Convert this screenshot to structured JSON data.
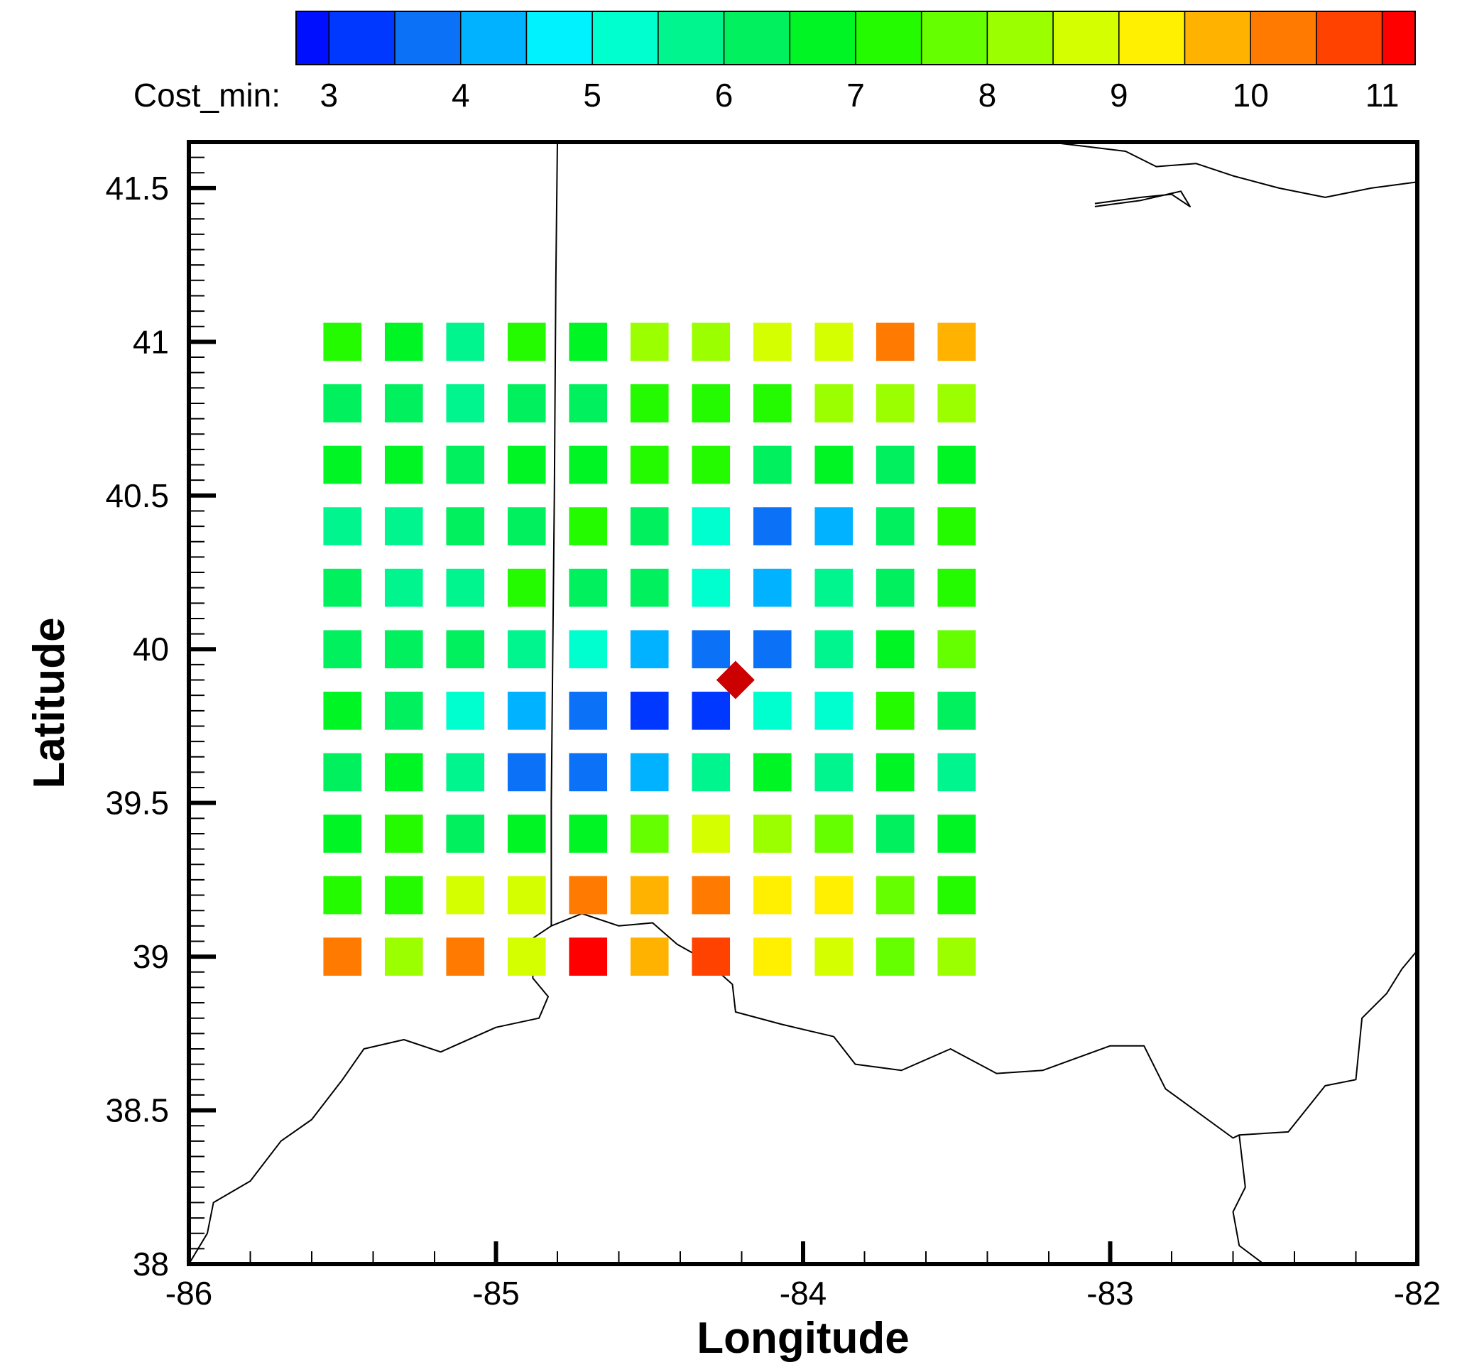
{
  "colorbar": {
    "label": "Cost_min:",
    "min": 2.75,
    "max": 11.25,
    "levels": [
      2.75,
      3.0,
      3.5,
      4.0,
      4.5,
      5.0,
      5.5,
      6.0,
      6.5,
      7.0,
      7.5,
      8.0,
      8.5,
      9.0,
      9.5,
      10.0,
      10.5,
      11.0,
      11.25
    ],
    "colors": [
      "#0010ff",
      "#0038ff",
      "#0b72f7",
      "#00b2ff",
      "#00f2ff",
      "#00ffce",
      "#00f58f",
      "#00f05e",
      "#00f525",
      "#24fa00",
      "#66ff00",
      "#9cff00",
      "#d4ff00",
      "#ffef00",
      "#ffb300",
      "#ff7a00",
      "#ff4200",
      "#ff0000"
    ],
    "tick_values": [
      3,
      4,
      5,
      6,
      7,
      8,
      9,
      10,
      11
    ],
    "tick_labels": [
      "3",
      "4",
      "5",
      "6",
      "7",
      "8",
      "9",
      "10",
      "11"
    ]
  },
  "chart_data": {
    "type": "heatmap",
    "xlabel": "Longitude",
    "ylabel": "Latitude",
    "xlim": [
      -86,
      -82
    ],
    "ylim": [
      38,
      41.65
    ],
    "xticks": [
      -86,
      -85,
      -84,
      -83,
      -82
    ],
    "xtick_labels": [
      "-86",
      "-85",
      "-84",
      "-83",
      "-82"
    ],
    "yticks": [
      38,
      38.5,
      39,
      39.5,
      40,
      40.5,
      41,
      41.5
    ],
    "ytick_labels": [
      "38",
      "38.5",
      "39",
      "39.5",
      "40",
      "40.5",
      "41",
      "41.5"
    ],
    "x": [
      -85.5,
      -85.3,
      -85.1,
      -84.9,
      -84.7,
      -84.5,
      -84.3,
      -84.1,
      -83.9,
      -83.7,
      -83.5
    ],
    "y": [
      41.0,
      40.8,
      40.6,
      40.4,
      40.2,
      40.0,
      39.8,
      39.6,
      39.4,
      39.2,
      39.0
    ],
    "z": [
      [
        7.0,
        6.5,
        5.5,
        7.0,
        6.5,
        8.0,
        8.0,
        8.5,
        8.5,
        10.0,
        9.5
      ],
      [
        6.0,
        6.0,
        5.5,
        6.0,
        6.0,
        7.0,
        7.0,
        7.0,
        8.0,
        8.0,
        8.0
      ],
      [
        6.5,
        6.5,
        6.0,
        6.5,
        6.5,
        7.0,
        7.0,
        6.0,
        6.5,
        6.0,
        6.5
      ],
      [
        5.5,
        5.5,
        6.0,
        6.0,
        7.0,
        6.0,
        5.0,
        3.5,
        4.0,
        6.0,
        7.0
      ],
      [
        6.0,
        5.5,
        5.5,
        7.0,
        6.0,
        6.0,
        5.0,
        4.0,
        5.5,
        6.0,
        7.0
      ],
      [
        6.0,
        6.0,
        6.0,
        5.5,
        5.0,
        4.0,
        3.5,
        3.5,
        5.5,
        6.5,
        7.5
      ],
      [
        6.5,
        6.0,
        5.0,
        4.0,
        3.5,
        3.0,
        3.0,
        5.0,
        5.0,
        7.0,
        6.0
      ],
      [
        6.0,
        6.5,
        5.5,
        3.5,
        3.5,
        4.0,
        5.5,
        6.5,
        5.5,
        6.5,
        5.5
      ],
      [
        6.5,
        7.0,
        6.0,
        6.5,
        6.5,
        7.5,
        8.5,
        8.0,
        7.5,
        6.0,
        6.5
      ],
      [
        7.0,
        7.0,
        8.5,
        8.5,
        10.0,
        9.5,
        10.0,
        9.0,
        9.0,
        7.5,
        7.0
      ],
      [
        10.0,
        8.0,
        10.0,
        8.5,
        11.0,
        9.5,
        10.5,
        9.0,
        8.5,
        7.5,
        8.0
      ]
    ],
    "marker": {
      "lon": -84.22,
      "lat": 39.9,
      "shape": "diamond",
      "color": "#cc0000"
    },
    "grid": false
  },
  "map": {
    "boundary_color": "#000000",
    "state_line": [
      [
        -84.8,
        41.65
      ],
      [
        -84.805,
        41.2
      ],
      [
        -84.81,
        40.5
      ],
      [
        -84.815,
        40.0
      ],
      [
        -84.82,
        39.5
      ],
      [
        -84.82,
        39.1
      ]
    ],
    "river": [
      [
        -86,
        38.0
      ],
      [
        -85.94,
        38.1
      ],
      [
        -85.92,
        38.2
      ],
      [
        -85.8,
        38.27
      ],
      [
        -85.7,
        38.4
      ],
      [
        -85.6,
        38.47
      ],
      [
        -85.5,
        38.6
      ],
      [
        -85.43,
        38.7
      ],
      [
        -85.3,
        38.73
      ],
      [
        -85.18,
        38.69
      ],
      [
        -85.0,
        38.77
      ],
      [
        -84.86,
        38.8
      ],
      [
        -84.83,
        38.87
      ],
      [
        -84.88,
        38.93
      ],
      [
        -84.88,
        39.06
      ],
      [
        -84.82,
        39.1
      ],
      [
        -84.72,
        39.14
      ],
      [
        -84.6,
        39.1
      ],
      [
        -84.49,
        39.11
      ],
      [
        -84.41,
        39.04
      ],
      [
        -84.32,
        38.99
      ],
      [
        -84.23,
        38.91
      ],
      [
        -84.22,
        38.82
      ],
      [
        -84.07,
        38.78
      ],
      [
        -83.9,
        38.74
      ],
      [
        -83.83,
        38.65
      ],
      [
        -83.68,
        38.63
      ],
      [
        -83.52,
        38.7
      ],
      [
        -83.37,
        38.62
      ],
      [
        -83.22,
        38.63
      ],
      [
        -83.0,
        38.71
      ],
      [
        -82.89,
        38.71
      ],
      [
        -82.82,
        38.57
      ],
      [
        -82.6,
        38.41
      ],
      [
        -82.58,
        38.42
      ],
      [
        -82.42,
        38.43
      ],
      [
        -82.3,
        38.58
      ],
      [
        -82.2,
        38.6
      ],
      [
        -82.18,
        38.8
      ],
      [
        -82.1,
        38.88
      ],
      [
        -82.05,
        38.96
      ],
      [
        -82.0,
        39.02
      ]
    ],
    "river_branch": [
      [
        -82.58,
        38.42
      ],
      [
        -82.56,
        38.25
      ],
      [
        -82.6,
        38.17
      ],
      [
        -82.58,
        38.06
      ],
      [
        -82.5,
        38.0
      ]
    ],
    "lake_shore": [
      [
        -83.2,
        41.65
      ],
      [
        -82.95,
        41.62
      ],
      [
        -82.85,
        41.57
      ],
      [
        -82.72,
        41.58
      ],
      [
        -82.6,
        41.54
      ],
      [
        -82.45,
        41.5
      ],
      [
        -82.3,
        41.47
      ],
      [
        -82.15,
        41.5
      ],
      [
        -82.0,
        41.52
      ]
    ],
    "lake_inlet": [
      [
        -83.05,
        41.45
      ],
      [
        -82.9,
        41.47
      ],
      [
        -82.8,
        41.48
      ],
      [
        -82.74,
        41.44
      ],
      [
        -82.77,
        41.49
      ],
      [
        -82.9,
        41.46
      ],
      [
        -83.05,
        41.44
      ]
    ]
  }
}
